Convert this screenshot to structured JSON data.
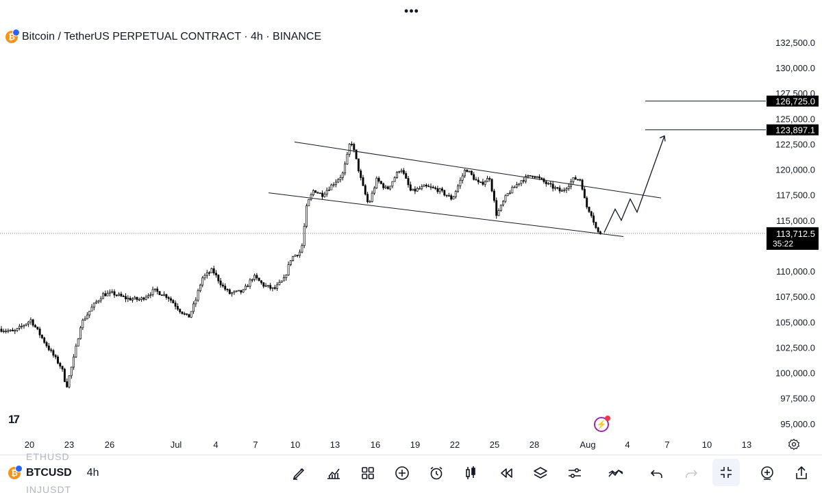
{
  "header": {
    "title": "Bitcoin / TetherUS PERPETUAL CONTRACT · 4h · BINANCE",
    "coin_glyph": "₿"
  },
  "chart_data": {
    "type": "candlestick",
    "symbol": "Bitcoin / TetherUS PERPETUAL CONTRACT",
    "interval": "4h",
    "exchange": "BINANCE",
    "y_axis": {
      "ticks": [
        "132,500.0",
        "130,000.0",
        "127,500.0",
        "125,000.0",
        "122,500.0",
        "120,000.0",
        "117,500.0",
        "115,000.0",
        "110,000.0",
        "107,500.0",
        "105,000.0",
        "102,500.0",
        "100,000.0",
        "97,500.0",
        "95,000.0"
      ],
      "range": [
        94200,
        134000
      ]
    },
    "x_axis": {
      "ticks": [
        "20",
        "23",
        "26",
        "Jul",
        "4",
        "7",
        "10",
        "13",
        "16",
        "19",
        "22",
        "25",
        "28",
        "Aug",
        "4",
        "7",
        "10",
        "13"
      ]
    },
    "price_labels": [
      {
        "value": "126,725.0",
        "price": 126725
      },
      {
        "value": "123,897.1",
        "price": 123897.1
      }
    ],
    "last_price": {
      "value": "113,712.5",
      "countdown": "35:22",
      "price": 113712.5
    },
    "keypoints": [
      [
        0,
        104300
      ],
      [
        20,
        104000
      ],
      [
        45,
        105200
      ],
      [
        70,
        102500
      ],
      [
        90,
        100500
      ],
      [
        97,
        98600
      ],
      [
        108,
        101500
      ],
      [
        118,
        104800
      ],
      [
        135,
        106500
      ],
      [
        150,
        107700
      ],
      [
        165,
        107800
      ],
      [
        185,
        107300
      ],
      [
        205,
        107200
      ],
      [
        225,
        108100
      ],
      [
        245,
        107500
      ],
      [
        262,
        106200
      ],
      [
        275,
        105400
      ],
      [
        285,
        107000
      ],
      [
        295,
        109300
      ],
      [
        310,
        110100
      ],
      [
        325,
        108500
      ],
      [
        335,
        107800
      ],
      [
        355,
        108000
      ],
      [
        370,
        109500
      ],
      [
        385,
        108600
      ],
      [
        400,
        108200
      ],
      [
        415,
        109200
      ],
      [
        425,
        111300
      ],
      [
        440,
        112000
      ],
      [
        448,
        116500
      ],
      [
        458,
        118000
      ],
      [
        470,
        117500
      ],
      [
        485,
        118500
      ],
      [
        500,
        119500
      ],
      [
        506,
        121000
      ],
      [
        512,
        123000
      ],
      [
        518,
        121500
      ],
      [
        528,
        118700
      ],
      [
        538,
        116500
      ],
      [
        550,
        119000
      ],
      [
        565,
        118000
      ],
      [
        585,
        120200
      ],
      [
        600,
        117800
      ],
      [
        620,
        118300
      ],
      [
        640,
        118000
      ],
      [
        660,
        117100
      ],
      [
        680,
        120100
      ],
      [
        700,
        118500
      ],
      [
        715,
        119200
      ],
      [
        725,
        115500
      ],
      [
        740,
        117500
      ],
      [
        760,
        118900
      ],
      [
        778,
        119500
      ],
      [
        800,
        118500
      ],
      [
        820,
        117800
      ],
      [
        838,
        119100
      ],
      [
        848,
        119000
      ],
      [
        855,
        116500
      ],
      [
        863,
        115700
      ],
      [
        872,
        113800
      ],
      [
        878,
        113712
      ]
    ],
    "drawings": {
      "channel_upper": [
        [
          430,
          122700
        ],
        [
          965,
          117200
        ]
      ],
      "channel_lower": [
        [
          392,
          117700
        ],
        [
          910,
          113400
        ]
      ],
      "projection": [
        [
          882,
          113800
        ],
        [
          898,
          116100
        ],
        [
          907,
          115000
        ],
        [
          920,
          117100
        ],
        [
          930,
          115800
        ],
        [
          970,
          123300
        ]
      ],
      "levels": [
        126725,
        123897.1
      ]
    }
  },
  "colors": {
    "candle_up": "#ffffff",
    "candle_down": "#000000",
    "outline": "#000000",
    "label_bg": "#000000",
    "label_fg": "#ffffff"
  },
  "bottom": {
    "ghost_above": "ETHUSD",
    "symbol": "BTCUSD",
    "interval": "4h",
    "ghost_below": "INJUSDT"
  },
  "toolbar_icons": [
    "pencil-icon",
    "indicators-icon",
    "grid-icon",
    "add-icon",
    "alarm-icon",
    "candles-icon",
    "replay-icon",
    "layers-icon",
    "settings-sliders-icon",
    "strategy-icon",
    "undo-icon",
    "redo-icon",
    "collapse-icon",
    "add-alert-icon",
    "share-icon"
  ]
}
